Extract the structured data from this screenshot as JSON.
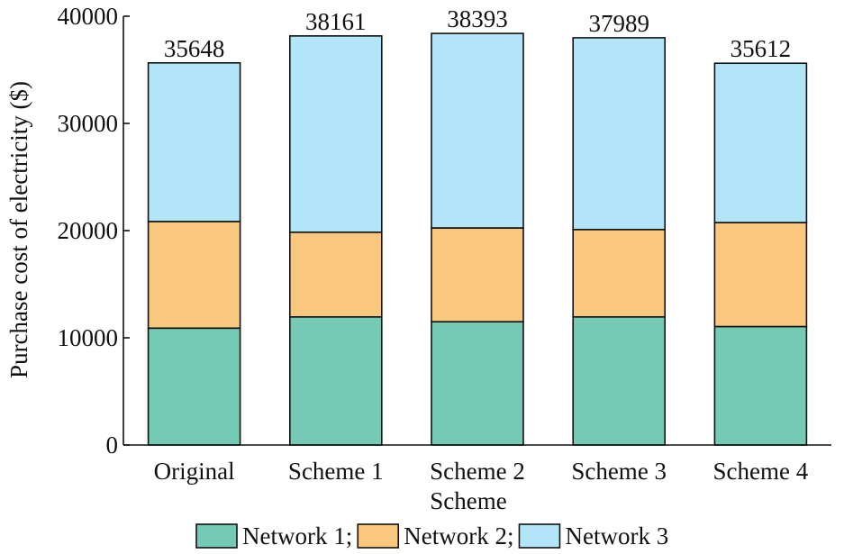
{
  "chart_data": {
    "type": "bar",
    "stacked": true,
    "categories": [
      "Original",
      "Scheme 1",
      "Scheme 2",
      "Scheme 3",
      "Scheme 4"
    ],
    "series": [
      {
        "name": "Network 1;",
        "color": "#74cab5",
        "values": [
          10900,
          11950,
          11500,
          11950,
          11050
        ]
      },
      {
        "name": "Network 2;",
        "color": "#fac77e",
        "values": [
          9950,
          7900,
          8750,
          8150,
          9700
        ]
      },
      {
        "name": "Network 3",
        "color": "#b3e5f8",
        "values": [
          14798,
          18311,
          18143,
          17889,
          14862
        ]
      }
    ],
    "totals": [
      "35648",
      "38161",
      "38393",
      "37989",
      "35612"
    ],
    "xlabel": "Scheme",
    "ylabel": "Purchase cost of electricity ($)",
    "ylim": [
      0,
      40000
    ],
    "yticks": [
      0,
      10000,
      20000,
      30000,
      40000
    ],
    "ytick_labels": [
      "0",
      "10000",
      "20000",
      "30000",
      "40000"
    ],
    "grid": false,
    "legend_position": "bottom"
  }
}
